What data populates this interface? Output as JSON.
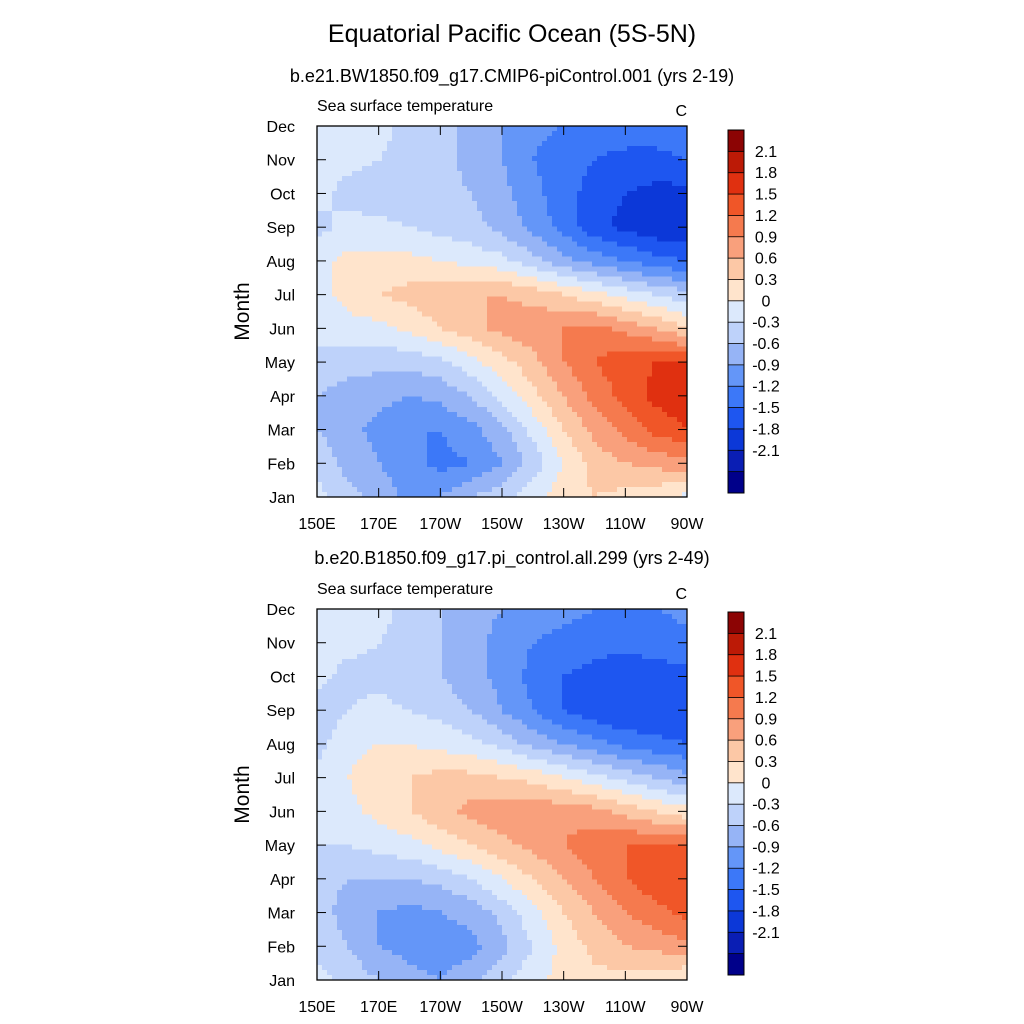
{
  "main_title": "Equatorial Pacific Ocean (5S-5N)",
  "chart_data": [
    {
      "type": "heatmap",
      "title": "b.e21.BW1850.f09_g17.CMIP6-piControl.001 (yrs 2-19)",
      "left_string": "Sea surface temperature",
      "right_string": "C",
      "xlabel": "",
      "ylabel": "Month",
      "xticks": [
        "150E",
        "170E",
        "170W",
        "150W",
        "130W",
        "110W",
        "90W"
      ],
      "xlim_lon": [
        150,
        270
      ],
      "yticks": [
        "Jan",
        "Feb",
        "Mar",
        "Apr",
        "May",
        "Jun",
        "Jul",
        "Aug",
        "Sep",
        "Oct",
        "Nov",
        "Dec"
      ],
      "colorbar_labels": [
        "2.1",
        "1.8",
        "1.5",
        "1.2",
        "0.9",
        "0.6",
        "0.3",
        "0",
        "-0.3",
        "-0.6",
        "-0.9",
        "-1.2",
        "-1.5",
        "-1.8",
        "-2.1"
      ],
      "contour_levels": [
        -2.1,
        -1.8,
        -1.5,
        -1.2,
        -0.9,
        -0.6,
        -0.3,
        0,
        0.3,
        0.6,
        0.9,
        1.2,
        1.5,
        1.8,
        2.1
      ],
      "colors": [
        "#00008a",
        "#0a1eb4",
        "#0c38d8",
        "#1e56f0",
        "#3c78f8",
        "#6496f8",
        "#96b4f6",
        "#bed2fa",
        "#dce9fc",
        "#ffe4cc",
        "#fcc8a6",
        "#f9a07c",
        "#f57a4e",
        "#f05628",
        "#e03010",
        "#bc1a06",
        "#8c0404"
      ],
      "values": [
        [
          0.1,
          -0.2,
          -0.4,
          -0.7,
          -0.6,
          -0.3,
          -0.1,
          0.2,
          0.5,
          0.6,
          0.5,
          0.4,
          0.2
        ],
        [
          -0.1,
          -0.4,
          -0.6,
          -0.8,
          -1.0,
          -0.9,
          -0.6,
          -0.2,
          0.3,
          0.7,
          0.9,
          1.0,
          1.1
        ],
        [
          -0.3,
          -0.5,
          -0.7,
          -0.9,
          -0.9,
          -0.7,
          -0.4,
          0.1,
          0.6,
          1.0,
          1.3,
          1.6,
          1.8
        ],
        [
          -0.3,
          -0.4,
          -0.5,
          -0.6,
          -0.5,
          -0.3,
          0.1,
          0.5,
          0.9,
          1.3,
          1.6,
          1.9,
          2.0
        ],
        [
          -0.1,
          -0.2,
          -0.2,
          -0.2,
          -0.1,
          0.2,
          0.5,
          0.8,
          1.2,
          1.5,
          1.7,
          1.8,
          1.8
        ],
        [
          0.1,
          0.2,
          0.2,
          0.4,
          0.6,
          0.8,
          1.0,
          1.1,
          1.2,
          1.3,
          1.1,
          0.9,
          0.6
        ],
        [
          0.2,
          0.4,
          0.6,
          0.7,
          0.8,
          0.9,
          0.9,
          0.8,
          0.6,
          0.4,
          0.2,
          0.0,
          -0.2
        ],
        [
          0.2,
          0.4,
          0.4,
          0.4,
          0.3,
          0.2,
          0.1,
          -0.2,
          -0.5,
          -0.7,
          -0.9,
          -1.1,
          -1.2
        ],
        [
          -0.1,
          0.1,
          0.1,
          0.0,
          -0.1,
          -0.2,
          -0.4,
          -0.7,
          -1.0,
          -1.4,
          -1.6,
          -1.7,
          -1.8
        ],
        [
          0.1,
          -0.1,
          -0.2,
          -0.2,
          -0.2,
          -0.3,
          -0.5,
          -0.8,
          -1.1,
          -1.3,
          -1.5,
          -1.6,
          -1.6
        ],
        [
          0.1,
          0.1,
          0.0,
          -0.1,
          -0.2,
          -0.4,
          -0.6,
          -0.9,
          -1.1,
          -1.2,
          -1.3,
          -1.3,
          -1.2
        ],
        [
          0.2,
          0.2,
          0.1,
          -0.1,
          -0.2,
          -0.4,
          -0.6,
          -0.8,
          -0.9,
          -1.0,
          -1.0,
          -1.0,
          -0.9
        ]
      ]
    },
    {
      "type": "heatmap",
      "title": "b.e20.B1850.f09_g17.pi_control.all.299 (yrs 2-49)",
      "left_string": "Sea surface temperature",
      "right_string": "C",
      "xlabel": "",
      "ylabel": "Month",
      "xticks": [
        "150E",
        "170E",
        "170W",
        "150W",
        "130W",
        "110W",
        "90W"
      ],
      "xlim_lon": [
        150,
        270
      ],
      "yticks": [
        "Jan",
        "Feb",
        "Mar",
        "Apr",
        "May",
        "Jun",
        "Jul",
        "Aug",
        "Sep",
        "Oct",
        "Nov",
        "Dec"
      ],
      "colorbar_labels": [
        "2.1",
        "1.8",
        "1.5",
        "1.2",
        "0.9",
        "0.6",
        "0.3",
        "0",
        "-0.3",
        "-0.6",
        "-0.9",
        "-1.2",
        "-1.5",
        "-1.8",
        "-2.1"
      ],
      "contour_levels": [
        -2.1,
        -1.8,
        -1.5,
        -1.2,
        -0.9,
        -0.6,
        -0.3,
        0,
        0.3,
        0.6,
        0.9,
        1.2,
        1.5,
        1.8,
        2.1
      ],
      "colors": [
        "#00008a",
        "#0a1eb4",
        "#0c38d8",
        "#1e56f0",
        "#3c78f8",
        "#6496f8",
        "#96b4f6",
        "#bed2fa",
        "#dce9fc",
        "#ffe4cc",
        "#fcc8a6",
        "#f9a07c",
        "#f57a4e",
        "#f05628",
        "#e03010",
        "#bc1a06",
        "#8c0404"
      ],
      "values": [
        [
          0.1,
          -0.1,
          -0.3,
          -0.5,
          -0.6,
          -0.4,
          -0.1,
          0.2,
          0.4,
          0.5,
          0.5,
          0.4,
          0.3
        ],
        [
          -0.1,
          -0.3,
          -0.6,
          -0.7,
          -0.8,
          -0.7,
          -0.4,
          0.0,
          0.4,
          0.7,
          0.9,
          1.0,
          1.1
        ],
        [
          -0.2,
          -0.4,
          -0.6,
          -0.7,
          -0.6,
          -0.5,
          -0.2,
          0.2,
          0.6,
          0.9,
          1.2,
          1.4,
          1.6
        ],
        [
          -0.2,
          -0.3,
          -0.3,
          -0.3,
          -0.2,
          0.0,
          0.3,
          0.6,
          0.9,
          1.2,
          1.5,
          1.7,
          1.8
        ],
        [
          0.0,
          0.0,
          0.1,
          0.2,
          0.4,
          0.6,
          0.8,
          1.0,
          1.2,
          1.4,
          1.5,
          1.5,
          1.5
        ],
        [
          0.1,
          0.2,
          0.4,
          0.6,
          0.8,
          1.0,
          1.1,
          1.1,
          1.1,
          1.0,
          0.8,
          0.6,
          0.4
        ],
        [
          0.1,
          0.3,
          0.5,
          0.6,
          0.7,
          0.7,
          0.6,
          0.5,
          0.3,
          0.1,
          -0.1,
          -0.3,
          -0.5
        ],
        [
          -0.1,
          0.2,
          0.3,
          0.3,
          0.2,
          0.1,
          -0.1,
          -0.4,
          -0.6,
          -0.8,
          -1.0,
          -1.1,
          -1.2
        ],
        [
          -0.2,
          0.0,
          0.1,
          0.0,
          -0.1,
          -0.3,
          -0.6,
          -0.9,
          -1.2,
          -1.4,
          -1.5,
          -1.5,
          -1.5
        ],
        [
          0.1,
          -0.1,
          -0.1,
          -0.2,
          -0.3,
          -0.5,
          -0.7,
          -1.0,
          -1.2,
          -1.3,
          -1.4,
          -1.3,
          -1.3
        ],
        [
          0.1,
          0.1,
          0.0,
          -0.1,
          -0.3,
          -0.5,
          -0.7,
          -0.9,
          -1.0,
          -1.1,
          -1.1,
          -1.1,
          -1.0
        ],
        [
          0.2,
          0.2,
          0.1,
          -0.1,
          -0.3,
          -0.5,
          -0.6,
          -0.7,
          -0.8,
          -0.9,
          -0.9,
          -0.9,
          -0.8
        ]
      ]
    }
  ]
}
